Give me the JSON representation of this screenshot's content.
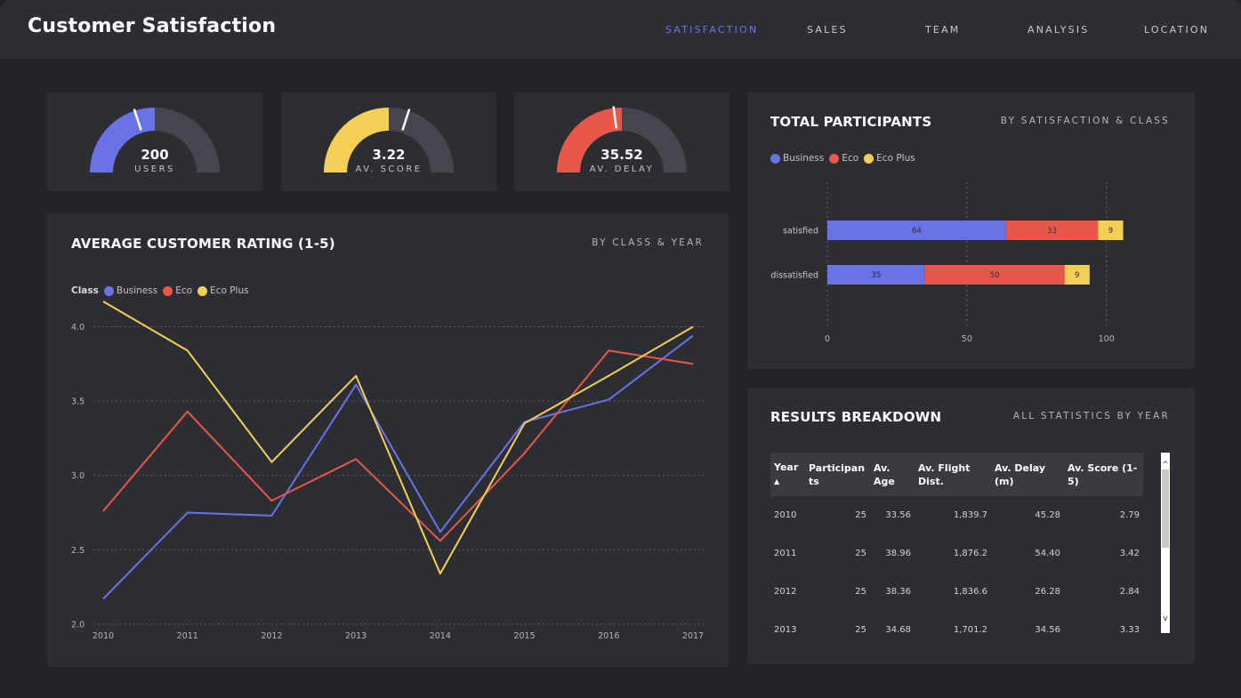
{
  "header": {
    "title": "Customer Satisfaction",
    "nav": [
      "SATISFACTION",
      "SALES",
      "TEAM",
      "ANALYSIS",
      "LOCATION"
    ],
    "active_nav": "SATISFACTION"
  },
  "colors": {
    "business": "#6a72e8",
    "eco": "#e8584a",
    "eco_plus": "#f5cf55",
    "card": "#2d2e33",
    "track": "#46474e"
  },
  "kpis": [
    {
      "value": "200",
      "label": "USERS",
      "fill_fraction": 0.5,
      "marker_fraction": 0.4,
      "color": "#6a72e8"
    },
    {
      "value": "3.22",
      "label": "AV. SCORE",
      "fill_fraction": 0.5,
      "marker_fraction": 0.6,
      "color": "#f5cf55"
    },
    {
      "value": "35.52",
      "label": "AV. DELAY",
      "fill_fraction": 0.5,
      "marker_fraction": 0.46,
      "color": "#e8584a"
    }
  ],
  "rating_card": {
    "title": "AVERAGE CUSTOMER RATING (1-5)",
    "subtitle": "BY CLASS & YEAR"
  },
  "participants_card": {
    "title": "TOTAL PARTICIPANTS",
    "subtitle": "BY SATISFACTION & CLASS"
  },
  "results_card": {
    "title": "RESULTS BREAKDOWN",
    "subtitle": "ALL STATISTICS BY YEAR",
    "columns": [
      "Year",
      "Participants",
      "Av. Age",
      "Av. Flight Dist.",
      "Av. Delay (m)",
      "Av. Score (1-5)"
    ],
    "rows": [
      [
        "2010",
        "25",
        "33.56",
        "1,839.7",
        "45.28",
        "2.79"
      ],
      [
        "2011",
        "25",
        "38.96",
        "1,876.2",
        "54.40",
        "3.42"
      ],
      [
        "2012",
        "25",
        "38.36",
        "1,836.6",
        "26.28",
        "2.84"
      ],
      [
        "2013",
        "25",
        "34.68",
        "1,701.2",
        "34.56",
        "3.33"
      ]
    ],
    "scroll_up_icon": "chevron-up-icon",
    "scroll_down_icon": "chevron-down-icon"
  },
  "chart_data": [
    {
      "type": "line",
      "legend_title": "Class",
      "legend_placement": "top-left",
      "x": [
        "2010",
        "2011",
        "2012",
        "2013",
        "2014",
        "2015",
        "2016",
        "2017"
      ],
      "ylim": [
        2.0,
        4.2
      ],
      "yticks": [
        "2.0",
        "2.5",
        "3.0",
        "3.5",
        "4.0"
      ],
      "ytick_values": [
        2.0,
        2.5,
        3.0,
        3.5,
        4.0
      ],
      "grid": true,
      "series": [
        {
          "name": "Business",
          "color": "#6a72e8",
          "values": [
            2.17,
            2.75,
            2.73,
            3.61,
            2.62,
            3.36,
            3.51,
            3.94
          ]
        },
        {
          "name": "Eco",
          "color": "#e8584a",
          "values": [
            2.76,
            3.43,
            2.83,
            3.11,
            2.56,
            3.15,
            3.84,
            3.75
          ]
        },
        {
          "name": "Eco Plus",
          "color": "#f5cf55",
          "values": [
            4.17,
            3.84,
            3.09,
            3.67,
            2.34,
            3.35,
            3.67,
            4.0
          ]
        }
      ]
    },
    {
      "type": "bar",
      "orientation": "horizontal",
      "stacked": true,
      "legend_placement": "top-left",
      "categories": [
        "satisfied",
        "dissatisfied"
      ],
      "xlim": [
        0,
        110
      ],
      "xticks": [
        "0",
        "50",
        "100"
      ],
      "xtick_values": [
        0,
        50,
        100
      ],
      "series": [
        {
          "name": "Business",
          "color": "#6a72e8",
          "values": [
            64,
            35
          ]
        },
        {
          "name": "Eco",
          "color": "#e8584a",
          "values": [
            33,
            50
          ]
        },
        {
          "name": "Eco Plus",
          "color": "#f5cf55",
          "values": [
            9,
            9
          ]
        }
      ]
    }
  ]
}
